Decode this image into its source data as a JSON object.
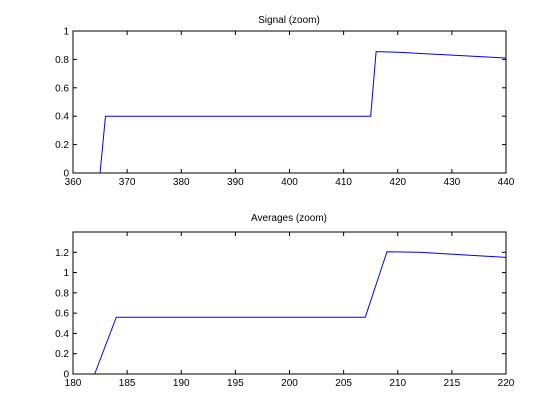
{
  "chart_data": [
    {
      "type": "line",
      "title": "Signal (zoom)",
      "xlabel": "",
      "ylabel": "",
      "xlim": [
        360,
        440
      ],
      "ylim": [
        0,
        1
      ],
      "x_ticks": [
        360,
        370,
        380,
        390,
        400,
        410,
        420,
        430,
        440
      ],
      "y_ticks": [
        0,
        0.2,
        0.4,
        0.6,
        0.8,
        1
      ],
      "x_tick_labels": [
        "360",
        "370",
        "380",
        "390",
        "400",
        "410",
        "420",
        "430",
        "440"
      ],
      "y_tick_labels": [
        "0",
        "0.2",
        "0.4",
        "0.6",
        "0.8",
        "1"
      ],
      "grid": false,
      "line_color": "#0000ff",
      "series": [
        {
          "x": [
            365,
            366,
            415,
            416,
            420,
            440
          ],
          "y": [
            0,
            0.4,
            0.4,
            0.855,
            0.85,
            0.81
          ]
        }
      ]
    },
    {
      "type": "line",
      "title": "Averages (zoom)",
      "xlabel": "",
      "ylabel": "",
      "xlim": [
        180,
        220
      ],
      "ylim": [
        0,
        1.4
      ],
      "x_ticks": [
        180,
        185,
        190,
        195,
        200,
        205,
        210,
        215,
        220
      ],
      "y_ticks": [
        0,
        0.2,
        0.4,
        0.6,
        0.8,
        1,
        1.2
      ],
      "x_tick_labels": [
        "180",
        "185",
        "190",
        "195",
        "200",
        "205",
        "210",
        "215",
        "220"
      ],
      "y_tick_labels": [
        "0",
        "0.2",
        "0.4",
        "0.6",
        "0.8",
        "1",
        "1.2"
      ],
      "grid": false,
      "line_color": "#0000ff",
      "series": [
        {
          "x": [
            182,
            184,
            207,
            209,
            212,
            220
          ],
          "y": [
            0,
            0.56,
            0.56,
            1.205,
            1.2,
            1.15
          ]
        }
      ]
    }
  ]
}
